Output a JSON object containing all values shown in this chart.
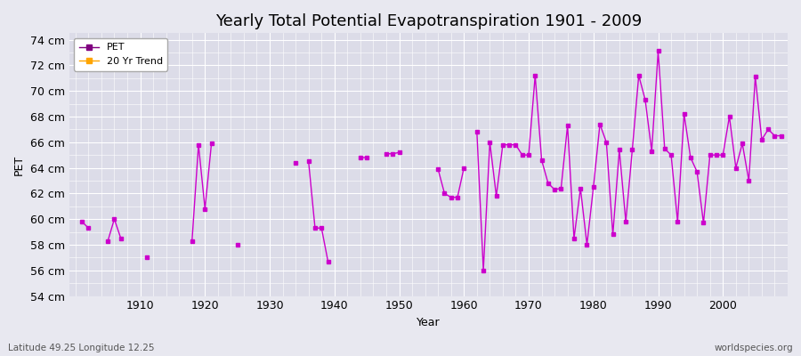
{
  "title": "Yearly Total Potential Evapotranspiration 1901 - 2009",
  "xlabel": "Year",
  "ylabel": "PET",
  "subtitle_left": "Latitude 49.25 Longitude 12.25",
  "subtitle_right": "worldspecies.org",
  "ylim": [
    54,
    74.5
  ],
  "yticks": [
    54,
    56,
    58,
    60,
    62,
    64,
    66,
    68,
    70,
    72,
    74
  ],
  "ytick_labels": [
    "54 cm",
    "56 cm",
    "58 cm",
    "60 cm",
    "62 cm",
    "64 cm",
    "66 cm",
    "68 cm",
    "70 cm",
    "72 cm",
    "74 cm"
  ],
  "xlim": [
    1899,
    2010
  ],
  "xticks": [
    1910,
    1920,
    1930,
    1940,
    1950,
    1960,
    1970,
    1980,
    1990,
    2000
  ],
  "pet_color": "#CC00CC",
  "trend_color": "#FFA500",
  "bg_color": "#E8E8F0",
  "plot_bg_color": "#DCDCE8",
  "grid_color": "#FFFFFF",
  "pet_data": {
    "1901": 59.8,
    "1902": 59.3,
    "1905": 58.3,
    "1906": 60.0,
    "1907": 58.5,
    "1911": 57.0,
    "1918": 58.3,
    "1919": 65.8,
    "1920": 60.8,
    "1921": 65.9,
    "1925": 58.0,
    "1934": 64.4,
    "1936": 64.5,
    "1937": 59.3,
    "1938": 59.3,
    "1939": 56.7,
    "1944": 64.8,
    "1945": 64.8,
    "1948": 65.1,
    "1949": 65.1,
    "1950": 65.2,
    "1956": 63.9,
    "1957": 62.0,
    "1958": 61.7,
    "1959": 61.7,
    "1960": 64.0,
    "1962": 66.8,
    "1963": 56.0,
    "1964": 66.0,
    "1965": 61.8,
    "1966": 65.8,
    "1967": 65.8,
    "1968": 65.8,
    "1969": 65.0,
    "1970": 65.0,
    "1971": 71.2,
    "1972": 64.6,
    "1973": 62.8,
    "1974": 62.3,
    "1975": 62.4,
    "1976": 67.3,
    "1977": 58.5,
    "1978": 62.4,
    "1979": 58.0,
    "1980": 62.5,
    "1981": 67.4,
    "1982": 66.0,
    "1983": 58.8,
    "1984": 65.4,
    "1985": 59.8,
    "1986": 65.4,
    "1987": 71.2,
    "1988": 69.3,
    "1989": 65.3,
    "1990": 73.1,
    "1991": 65.5,
    "1992": 65.0,
    "1993": 59.8,
    "1994": 68.2,
    "1995": 64.8,
    "1996": 63.7,
    "1997": 59.7,
    "1998": 65.0,
    "1999": 65.0,
    "2000": 65.0,
    "2001": 68.0,
    "2002": 64.0,
    "2003": 65.9,
    "2004": 63.0,
    "2005": 71.1,
    "2006": 66.2,
    "2007": 67.0,
    "2008": 66.5,
    "2009": 66.5
  },
  "legend_pet_color": "#800080",
  "legend_trend_color": "#FFA500",
  "title_fontsize": 13,
  "label_fontsize": 9,
  "tick_fontsize": 9
}
